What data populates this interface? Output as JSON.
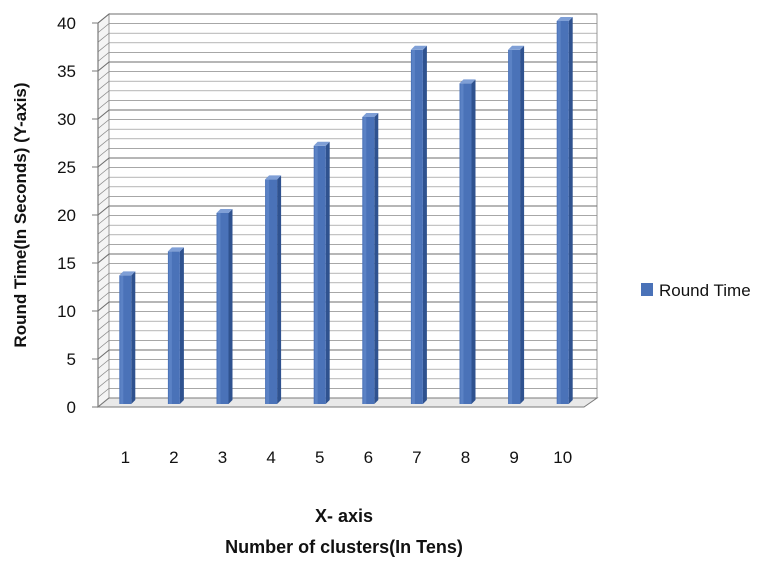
{
  "chart_data": {
    "type": "bar",
    "categories": [
      "1",
      "2",
      "3",
      "4",
      "5",
      "6",
      "7",
      "8",
      "9",
      "10"
    ],
    "series": [
      {
        "name": "Round Time",
        "values": [
          13.5,
          16,
          20,
          23.5,
          27,
          30,
          37,
          33.5,
          37,
          40
        ]
      }
    ],
    "ylim": [
      0,
      40
    ],
    "yticks": [
      "0",
      "5",
      "10",
      "15",
      "20",
      "25",
      "30",
      "35",
      "40"
    ],
    "ylabel": "Round Time(In Seconds) (Y-axis)",
    "xlabel": "X- axis",
    "xlabel_sub": "Number of clusters(In Tens)",
    "legend": {
      "position": "right",
      "entries": [
        "Round Time"
      ]
    },
    "grid": true,
    "colors": {
      "bar_front": "#4a72b8",
      "bar_side": "#2f528f",
      "bar_top": "#7f9fd6",
      "grid": "#8a8a8a",
      "wall": "#ffffff"
    }
  }
}
